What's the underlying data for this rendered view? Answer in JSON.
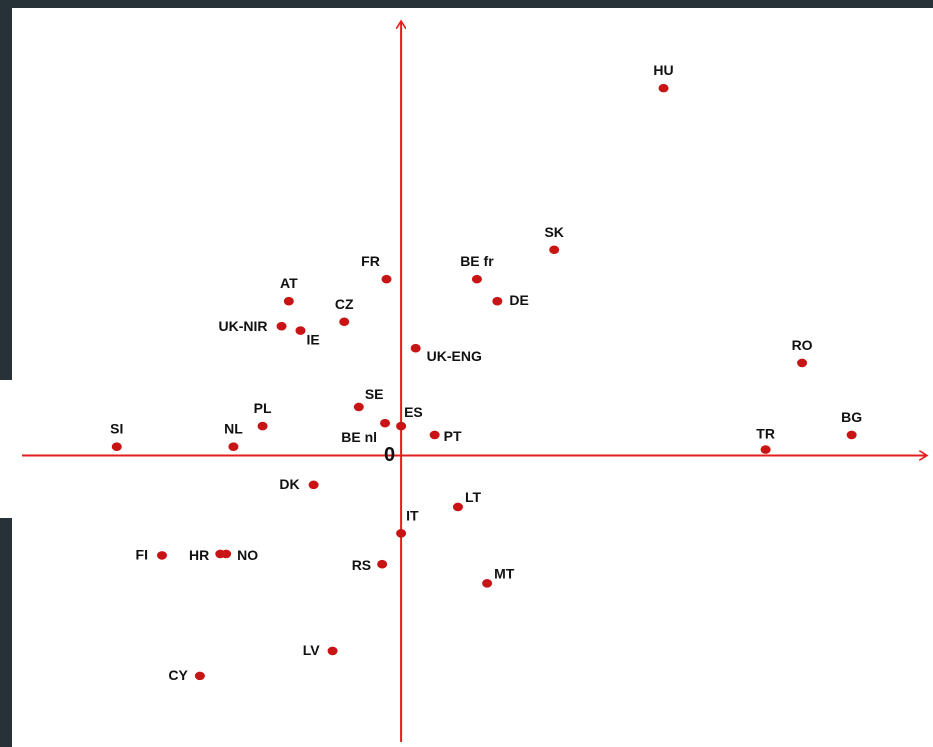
{
  "chart_data": {
    "type": "scatter",
    "title": "",
    "xlabel": "",
    "ylabel": "",
    "origin_label": "0",
    "grid": false,
    "xlim": [
      -2.6,
      3.6
    ],
    "ylim": [
      -1.95,
      2.95
    ],
    "colors": {
      "background": "#263238",
      "canvas": "#ffffff",
      "axes": "#e41c1c",
      "points": "#c81414",
      "labels": "#111111"
    },
    "points": [
      {
        "name": "HU",
        "x": 1.8,
        "y": 2.5
      },
      {
        "name": "SK",
        "x": 1.05,
        "y": 1.4
      },
      {
        "name": "FR",
        "x": -0.1,
        "y": 1.2
      },
      {
        "name": "BE fr",
        "x": 0.52,
        "y": 1.2
      },
      {
        "name": "DE",
        "x": 0.66,
        "y": 1.05
      },
      {
        "name": "AT",
        "x": -0.77,
        "y": 1.05
      },
      {
        "name": "CZ",
        "x": -0.39,
        "y": 0.91
      },
      {
        "name": "UK-NIR",
        "x": -0.82,
        "y": 0.88
      },
      {
        "name": "IE",
        "x": -0.69,
        "y": 0.85
      },
      {
        "name": "UK-ENG",
        "x": 0.1,
        "y": 0.73
      },
      {
        "name": "RO",
        "x": 2.75,
        "y": 0.63
      },
      {
        "name": "SE",
        "x": -0.29,
        "y": 0.33
      },
      {
        "name": "PL",
        "x": -0.95,
        "y": 0.2
      },
      {
        "name": "BE nl",
        "x": -0.11,
        "y": 0.22
      },
      {
        "name": "ES",
        "x": 0.0,
        "y": 0.2
      },
      {
        "name": "PT",
        "x": 0.23,
        "y": 0.14
      },
      {
        "name": "SI",
        "x": -1.95,
        "y": 0.06
      },
      {
        "name": "NL",
        "x": -1.15,
        "y": 0.06
      },
      {
        "name": "BG",
        "x": 3.09,
        "y": 0.14
      },
      {
        "name": "TR",
        "x": 2.5,
        "y": 0.04
      },
      {
        "name": "DK",
        "x": -0.6,
        "y": -0.2
      },
      {
        "name": "LT",
        "x": 0.39,
        "y": -0.35
      },
      {
        "name": "IT",
        "x": 0.0,
        "y": -0.53
      },
      {
        "name": "FI",
        "x": -1.64,
        "y": -0.68
      },
      {
        "name": "HR",
        "x": -1.24,
        "y": -0.67
      },
      {
        "name": "NO",
        "x": -1.2,
        "y": -0.67
      },
      {
        "name": "RS",
        "x": -0.13,
        "y": -0.74
      },
      {
        "name": "MT",
        "x": 0.59,
        "y": -0.87
      },
      {
        "name": "LV",
        "x": -0.47,
        "y": -1.33
      },
      {
        "name": "CY",
        "x": -1.38,
        "y": -1.5
      }
    ]
  }
}
